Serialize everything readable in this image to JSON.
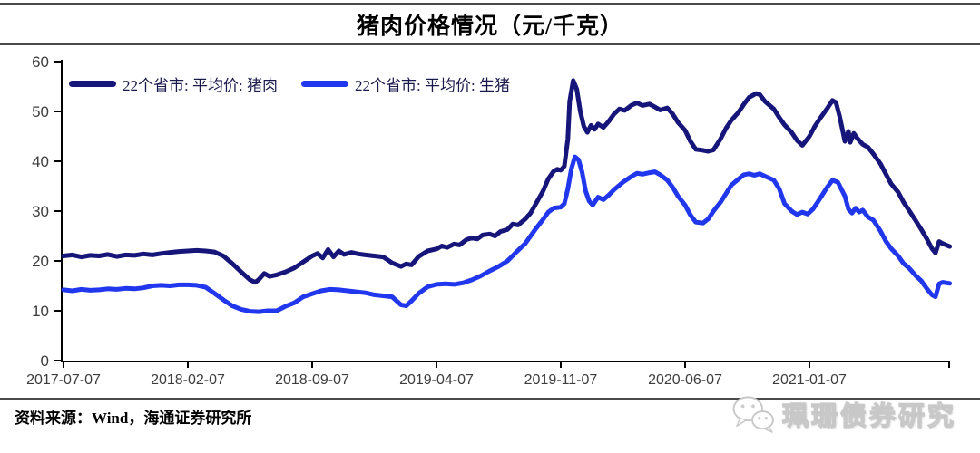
{
  "header": {
    "title": "猪肉价格情况（元/千克）"
  },
  "footer": {
    "source": "资料来源：Wind，海通证券研究所"
  },
  "watermark": {
    "label": "珮珊债券研究",
    "icon": "wechat-icon"
  },
  "colors": {
    "pork_line": "#16167A",
    "hog_line": "#2137EE",
    "axis": "#000000",
    "tick_label": "#3d3d3d",
    "legend_text": "#1a1a4d",
    "rule": "#4a4a4a"
  },
  "chart_data": {
    "type": "line",
    "title": "猪肉价格情况（元/千克）",
    "xlabel": "",
    "ylabel": "",
    "ylim": [
      0,
      60
    ],
    "ytick_step": 10,
    "grid": false,
    "legend_position": "top-left-inside",
    "x_tick_labels": [
      "2017-07-07",
      "2018-02-07",
      "2018-09-07",
      "2019-04-07",
      "2019-11-07",
      "2020-06-07",
      "2021-01-07"
    ],
    "x_tick_months": [
      0,
      7,
      14,
      21,
      28,
      35,
      42
    ],
    "x_end_month": 49.9,
    "x_unit": "months since 2017-07-07",
    "series": [
      {
        "name": "22个省市: 平均价: 猪肉",
        "color": "#16167A",
        "points": [
          [
            0,
            21
          ],
          [
            0.5,
            21.2
          ],
          [
            1,
            20.8
          ],
          [
            1.5,
            21.1
          ],
          [
            2,
            21
          ],
          [
            2.5,
            21.3
          ],
          [
            3,
            20.9
          ],
          [
            3.5,
            21.2
          ],
          [
            4,
            21.1
          ],
          [
            4.5,
            21.4
          ],
          [
            5,
            21.2
          ],
          [
            5.5,
            21.5
          ],
          [
            6,
            21.7
          ],
          [
            6.5,
            21.9
          ],
          [
            7,
            22
          ],
          [
            7.5,
            22.1
          ],
          [
            8,
            22
          ],
          [
            8.5,
            21.8
          ],
          [
            9,
            21
          ],
          [
            9.5,
            19.5
          ],
          [
            10,
            17.8
          ],
          [
            10.5,
            16.2
          ],
          [
            10.8,
            15.7
          ],
          [
            11,
            16.3
          ],
          [
            11.3,
            17.5
          ],
          [
            11.6,
            16.9
          ],
          [
            12,
            17.2
          ],
          [
            12.5,
            17.8
          ],
          [
            13,
            18.6
          ],
          [
            13.5,
            19.8
          ],
          [
            14,
            21
          ],
          [
            14.3,
            21.5
          ],
          [
            14.6,
            20.6
          ],
          [
            14.9,
            22.3
          ],
          [
            15.2,
            20.8
          ],
          [
            15.5,
            22
          ],
          [
            15.8,
            21.3
          ],
          [
            16.2,
            21.7
          ],
          [
            16.6,
            21.4
          ],
          [
            17,
            21.2
          ],
          [
            17.5,
            21
          ],
          [
            18,
            20.8
          ],
          [
            18.5,
            19.6
          ],
          [
            19,
            18.9
          ],
          [
            19.3,
            19.4
          ],
          [
            19.6,
            19.2
          ],
          [
            20,
            20.9
          ],
          [
            20.5,
            22
          ],
          [
            21,
            22.4
          ],
          [
            21.3,
            23
          ],
          [
            21.6,
            22.7
          ],
          [
            22,
            23.4
          ],
          [
            22.3,
            23.2
          ],
          [
            22.7,
            24.3
          ],
          [
            23,
            24.6
          ],
          [
            23.3,
            24.4
          ],
          [
            23.6,
            25.2
          ],
          [
            24,
            25.4
          ],
          [
            24.3,
            25
          ],
          [
            24.6,
            25.9
          ],
          [
            25,
            26.3
          ],
          [
            25.3,
            27.4
          ],
          [
            25.6,
            27.2
          ],
          [
            26,
            28.4
          ],
          [
            26.3,
            29.6
          ],
          [
            26.6,
            31.5
          ],
          [
            27,
            34
          ],
          [
            27.3,
            36.5
          ],
          [
            27.6,
            38
          ],
          [
            27.8,
            38.4
          ],
          [
            28,
            38.2
          ],
          [
            28.2,
            39
          ],
          [
            28.4,
            44.5
          ],
          [
            28.5,
            52
          ],
          [
            28.7,
            56.2
          ],
          [
            28.9,
            54.5
          ],
          [
            29.1,
            50
          ],
          [
            29.3,
            47
          ],
          [
            29.5,
            45.8
          ],
          [
            29.7,
            47.2
          ],
          [
            29.9,
            46.4
          ],
          [
            30.1,
            47.5
          ],
          [
            30.4,
            46.8
          ],
          [
            30.7,
            48
          ],
          [
            31,
            49.5
          ],
          [
            31.3,
            50.5
          ],
          [
            31.6,
            50.2
          ],
          [
            32,
            51.3
          ],
          [
            32.3,
            51.7
          ],
          [
            32.6,
            51.2
          ],
          [
            33,
            51.5
          ],
          [
            33.3,
            50.9
          ],
          [
            33.6,
            50.3
          ],
          [
            34,
            50.7
          ],
          [
            34.3,
            49.5
          ],
          [
            34.6,
            47.8
          ],
          [
            35,
            46.2
          ],
          [
            35.3,
            44
          ],
          [
            35.6,
            42.4
          ],
          [
            36,
            42.2
          ],
          [
            36.3,
            42
          ],
          [
            36.6,
            42.3
          ],
          [
            37,
            44.5
          ],
          [
            37.3,
            46.6
          ],
          [
            37.6,
            48.2
          ],
          [
            38,
            49.8
          ],
          [
            38.3,
            51.4
          ],
          [
            38.6,
            52.8
          ],
          [
            39,
            53.6
          ],
          [
            39.2,
            53.4
          ],
          [
            39.5,
            52
          ],
          [
            40,
            50.5
          ],
          [
            40.3,
            48.8
          ],
          [
            40.6,
            47.3
          ],
          [
            41,
            45.8
          ],
          [
            41.3,
            44.2
          ],
          [
            41.6,
            43.2
          ],
          [
            42,
            45
          ],
          [
            42.3,
            47
          ],
          [
            42.6,
            48.6
          ],
          [
            43,
            50.6
          ],
          [
            43.3,
            52.2
          ],
          [
            43.5,
            51.8
          ],
          [
            43.7,
            49
          ],
          [
            44,
            44
          ],
          [
            44.2,
            46
          ],
          [
            44.3,
            43.8
          ],
          [
            44.5,
            45.6
          ],
          [
            44.7,
            44.6
          ],
          [
            45,
            43.4
          ],
          [
            45.3,
            42.8
          ],
          [
            45.6,
            41.5
          ],
          [
            46,
            39.5
          ],
          [
            46.3,
            37.5
          ],
          [
            46.6,
            35.5
          ],
          [
            47,
            33.8
          ],
          [
            47.3,
            31.8
          ],
          [
            47.6,
            30.2
          ],
          [
            48,
            28
          ],
          [
            48.3,
            26.3
          ],
          [
            48.6,
            24.5
          ],
          [
            48.9,
            22.5
          ],
          [
            49.1,
            21.6
          ],
          [
            49.3,
            23.9
          ],
          [
            49.5,
            23.5
          ],
          [
            49.7,
            23.2
          ],
          [
            49.9,
            22.9
          ]
        ]
      },
      {
        "name": "22个省市: 平均价: 生猪",
        "color": "#2137EE",
        "points": [
          [
            0,
            14.2
          ],
          [
            0.5,
            14
          ],
          [
            1,
            14.3
          ],
          [
            1.5,
            14.1
          ],
          [
            2,
            14.2
          ],
          [
            2.5,
            14.4
          ],
          [
            3,
            14.3
          ],
          [
            3.5,
            14.5
          ],
          [
            4,
            14.4
          ],
          [
            4.5,
            14.6
          ],
          [
            5,
            15
          ],
          [
            5.5,
            15.1
          ],
          [
            6,
            15
          ],
          [
            6.5,
            15.2
          ],
          [
            7,
            15.2
          ],
          [
            7.5,
            15.1
          ],
          [
            8,
            14.7
          ],
          [
            8.5,
            13.5
          ],
          [
            9,
            12.2
          ],
          [
            9.5,
            11
          ],
          [
            10,
            10.3
          ],
          [
            10.5,
            9.9
          ],
          [
            11,
            9.8
          ],
          [
            11.5,
            10
          ],
          [
            12,
            10
          ],
          [
            12.5,
            10.9
          ],
          [
            13,
            11.6
          ],
          [
            13.5,
            12.8
          ],
          [
            14,
            13.4
          ],
          [
            14.5,
            14
          ],
          [
            15,
            14.3
          ],
          [
            15.5,
            14.2
          ],
          [
            16,
            14
          ],
          [
            16.5,
            13.8
          ],
          [
            17,
            13.6
          ],
          [
            17.5,
            13.2
          ],
          [
            18,
            13
          ],
          [
            18.5,
            12.8
          ],
          [
            19,
            11.2
          ],
          [
            19.3,
            11
          ],
          [
            19.6,
            12
          ],
          [
            20,
            13.5
          ],
          [
            20.5,
            14.8
          ],
          [
            21,
            15.3
          ],
          [
            21.5,
            15.4
          ],
          [
            22,
            15.3
          ],
          [
            22.5,
            15.6
          ],
          [
            23,
            16.2
          ],
          [
            23.5,
            17
          ],
          [
            24,
            18
          ],
          [
            24.5,
            18.9
          ],
          [
            25,
            20
          ],
          [
            25.5,
            21.8
          ],
          [
            26,
            23.5
          ],
          [
            26.3,
            25
          ],
          [
            26.6,
            26.5
          ],
          [
            27,
            28.3
          ],
          [
            27.3,
            29.8
          ],
          [
            27.6,
            30.6
          ],
          [
            28,
            30.8
          ],
          [
            28.2,
            31.5
          ],
          [
            28.4,
            34.5
          ],
          [
            28.6,
            38.5
          ],
          [
            28.8,
            40.9
          ],
          [
            29,
            40.3
          ],
          [
            29.2,
            37.8
          ],
          [
            29.4,
            34
          ],
          [
            29.6,
            32
          ],
          [
            29.8,
            31.2
          ],
          [
            30.1,
            32.8
          ],
          [
            30.4,
            32.3
          ],
          [
            30.7,
            33.2
          ],
          [
            31,
            34.3
          ],
          [
            31.5,
            35.8
          ],
          [
            32,
            37
          ],
          [
            32.3,
            37.6
          ],
          [
            32.6,
            37.4
          ],
          [
            33,
            37.7
          ],
          [
            33.3,
            37.9
          ],
          [
            33.6,
            37.3
          ],
          [
            34,
            36.2
          ],
          [
            34.3,
            34.8
          ],
          [
            34.6,
            33
          ],
          [
            35,
            31.2
          ],
          [
            35.3,
            29.2
          ],
          [
            35.6,
            27.8
          ],
          [
            36,
            27.6
          ],
          [
            36.3,
            28.4
          ],
          [
            36.6,
            30
          ],
          [
            37,
            31.8
          ],
          [
            37.3,
            33.5
          ],
          [
            37.6,
            35.2
          ],
          [
            38,
            36.4
          ],
          [
            38.3,
            37.3
          ],
          [
            38.6,
            37.5
          ],
          [
            38.9,
            37.2
          ],
          [
            39.2,
            37.5
          ],
          [
            39.5,
            37
          ],
          [
            40,
            36.2
          ],
          [
            40.3,
            34.5
          ],
          [
            40.6,
            31.5
          ],
          [
            41,
            30
          ],
          [
            41.3,
            29.3
          ],
          [
            41.6,
            29.8
          ],
          [
            41.9,
            29.4
          ],
          [
            42.2,
            30.4
          ],
          [
            42.5,
            32
          ],
          [
            43,
            34.8
          ],
          [
            43.3,
            36.2
          ],
          [
            43.6,
            35.8
          ],
          [
            44,
            33
          ],
          [
            44.2,
            30.4
          ],
          [
            44.4,
            29.6
          ],
          [
            44.6,
            30.6
          ],
          [
            44.8,
            29.8
          ],
          [
            45,
            30.2
          ],
          [
            45.3,
            28.8
          ],
          [
            45.6,
            28.2
          ],
          [
            46,
            26
          ],
          [
            46.3,
            24
          ],
          [
            46.6,
            22.5
          ],
          [
            47,
            21
          ],
          [
            47.3,
            19.5
          ],
          [
            47.6,
            18.6
          ],
          [
            48,
            17
          ],
          [
            48.3,
            16
          ],
          [
            48.6,
            14.5
          ],
          [
            48.9,
            13.2
          ],
          [
            49.1,
            12.8
          ],
          [
            49.3,
            15.4
          ],
          [
            49.5,
            15.7
          ],
          [
            49.7,
            15.6
          ],
          [
            49.9,
            15.5
          ]
        ]
      }
    ]
  }
}
